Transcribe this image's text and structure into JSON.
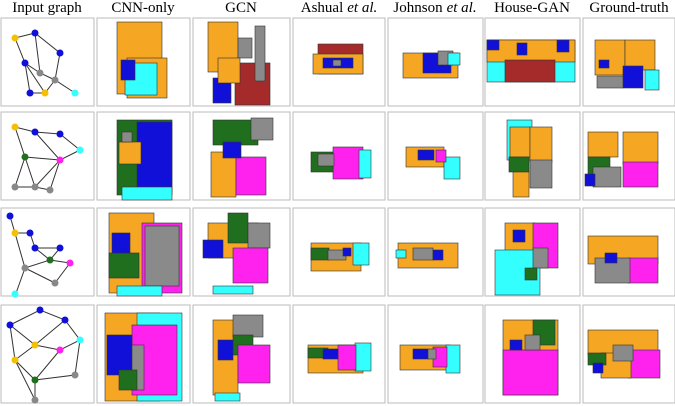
{
  "headers": [
    "Input graph",
    "CNN-only",
    "GCN",
    [
      "Ashual",
      "et al."
    ],
    [
      "Johnson",
      "et al."
    ],
    "House-GAN",
    "Ground-truth"
  ]
}
